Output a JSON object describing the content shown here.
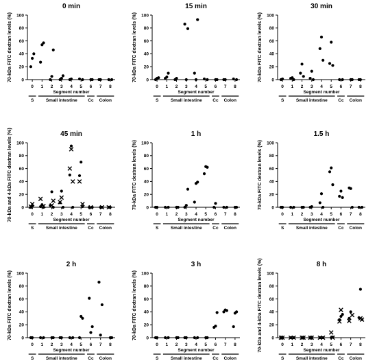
{
  "figure": {
    "y_label_70": "70-kDa FITC dextran levels (%)",
    "y_label_70_4": "70-kDa and 4-kDa FITC dextran levels (%)",
    "x_label": "Segment number",
    "groups": [
      "S",
      "Small intestine",
      "Cc",
      "Colon"
    ]
  },
  "chart_data": [
    {
      "type": "scatter",
      "title": "0 min",
      "ylabel": "70-kDa FITC dextran levels (%)",
      "xlabel": "Segment number",
      "x_categories": [
        "0",
        "1",
        "2",
        "3",
        "4",
        "5",
        "6",
        "7",
        "8"
      ],
      "ylim": [
        0,
        100
      ],
      "yticks": [
        0,
        20,
        40,
        60,
        80,
        100
      ],
      "series": [
        {
          "marker": "dot",
          "points": [
            [
              0,
              20
            ],
            [
              0,
              33
            ],
            [
              0,
              40
            ],
            [
              1,
              27
            ],
            [
              1,
              54
            ],
            [
              1,
              57
            ],
            [
              2,
              0
            ],
            [
              2,
              5
            ],
            [
              2,
              46
            ],
            [
              3,
              0
            ],
            [
              3,
              2
            ],
            [
              3,
              6
            ],
            [
              4,
              0
            ],
            [
              4,
              1
            ],
            [
              5,
              0
            ],
            [
              5,
              1
            ],
            [
              6,
              0
            ],
            [
              6,
              0
            ],
            [
              7,
              0
            ],
            [
              7,
              0
            ],
            [
              8,
              0
            ],
            [
              8,
              0
            ]
          ]
        }
      ]
    },
    {
      "type": "scatter",
      "title": "15 min",
      "ylabel": "70-kDa FITC dextran levels (%)",
      "xlabel": "Segment number",
      "x_categories": [
        "0",
        "1",
        "2",
        "3",
        "4",
        "5",
        "6",
        "7",
        "8"
      ],
      "ylim": [
        0,
        100
      ],
      "yticks": [
        0,
        20,
        40,
        60,
        80,
        100
      ],
      "series": [
        {
          "marker": "dot",
          "points": [
            [
              0,
              0
            ],
            [
              0,
              2
            ],
            [
              0,
              3
            ],
            [
              1,
              2
            ],
            [
              1,
              4
            ],
            [
              1,
              10
            ],
            [
              2,
              0
            ],
            [
              2,
              2
            ],
            [
              3,
              79
            ],
            [
              3,
              86
            ],
            [
              3,
              0
            ],
            [
              4,
              93
            ],
            [
              4,
              10
            ],
            [
              4,
              0
            ],
            [
              5,
              0
            ],
            [
              5,
              1
            ],
            [
              6,
              0
            ],
            [
              6,
              0
            ],
            [
              7,
              0
            ],
            [
              7,
              0
            ],
            [
              8,
              0
            ],
            [
              8,
              1
            ]
          ]
        }
      ]
    },
    {
      "type": "scatter",
      "title": "30 min",
      "ylabel": "70-kDa FITC dextran levels (%)",
      "xlabel": "Segment number",
      "x_categories": [
        "0",
        "1",
        "2",
        "3",
        "4",
        "5",
        "6",
        "7",
        "8"
      ],
      "ylim": [
        0,
        100
      ],
      "yticks": [
        0,
        20,
        40,
        60,
        80,
        100
      ],
      "series": [
        {
          "marker": "dot",
          "points": [
            [
              0,
              0
            ],
            [
              0,
              1
            ],
            [
              1,
              0
            ],
            [
              1,
              2
            ],
            [
              1,
              3
            ],
            [
              2,
              5
            ],
            [
              2,
              10
            ],
            [
              2,
              24
            ],
            [
              3,
              0
            ],
            [
              3,
              2
            ],
            [
              3,
              13
            ],
            [
              4,
              30
            ],
            [
              4,
              48
            ],
            [
              4,
              66
            ],
            [
              5,
              22
            ],
            [
              5,
              25
            ],
            [
              5,
              58
            ],
            [
              6,
              0
            ],
            [
              6,
              0
            ],
            [
              7,
              0
            ],
            [
              7,
              0
            ],
            [
              8,
              0
            ],
            [
              8,
              0
            ]
          ]
        }
      ]
    },
    {
      "type": "scatter",
      "title": "45 min",
      "ylabel": "70-kDa and 4-kDa FITC dextran levels (%)",
      "xlabel": "Segment number",
      "x_categories": [
        "0",
        "1",
        "2",
        "3",
        "4",
        "5",
        "6",
        "7",
        "8"
      ],
      "ylim": [
        0,
        100
      ],
      "yticks": [
        0,
        20,
        40,
        60,
        80,
        100
      ],
      "series": [
        {
          "marker": "dot",
          "points": [
            [
              0,
              0
            ],
            [
              0,
              2
            ],
            [
              1,
              0
            ],
            [
              1,
              1
            ],
            [
              1,
              4
            ],
            [
              2,
              0
            ],
            [
              2,
              3
            ],
            [
              2,
              24
            ],
            [
              3,
              0
            ],
            [
              3,
              7
            ],
            [
              3,
              25
            ],
            [
              4,
              0
            ],
            [
              4,
              50
            ],
            [
              4,
              95
            ],
            [
              5,
              1
            ],
            [
              5,
              49
            ],
            [
              5,
              70
            ],
            [
              6,
              0
            ],
            [
              6,
              0
            ],
            [
              7,
              0
            ],
            [
              7,
              0
            ],
            [
              8,
              0
            ],
            [
              8,
              0
            ]
          ]
        },
        {
          "marker": "x",
          "points": [
            [
              0,
              1
            ],
            [
              0,
              5
            ],
            [
              1,
              2
            ],
            [
              1,
              13
            ],
            [
              2,
              3
            ],
            [
              2,
              10
            ],
            [
              3,
              8
            ],
            [
              3,
              15
            ],
            [
              4,
              40
            ],
            [
              4,
              60
            ],
            [
              4,
              90
            ],
            [
              5,
              5
            ],
            [
              5,
              40
            ],
            [
              6,
              0
            ],
            [
              7,
              0
            ],
            [
              8,
              0
            ]
          ]
        }
      ]
    },
    {
      "type": "scatter",
      "title": "1 h",
      "ylabel": "70-kDa FITC dextran levels (%)",
      "xlabel": "Segment number",
      "x_categories": [
        "0",
        "1",
        "2",
        "3",
        "4",
        "5",
        "6",
        "7",
        "8"
      ],
      "ylim": [
        0,
        100
      ],
      "yticks": [
        0,
        20,
        40,
        60,
        80,
        100
      ],
      "series": [
        {
          "marker": "dot",
          "points": [
            [
              0,
              0
            ],
            [
              0,
              0
            ],
            [
              1,
              0
            ],
            [
              1,
              0
            ],
            [
              2,
              0
            ],
            [
              2,
              0
            ],
            [
              3,
              0
            ],
            [
              3,
              3
            ],
            [
              3,
              28
            ],
            [
              4,
              8
            ],
            [
              4,
              37
            ],
            [
              4,
              39
            ],
            [
              5,
              52
            ],
            [
              5,
              63
            ],
            [
              5,
              62
            ],
            [
              6,
              0
            ],
            [
              6,
              6
            ],
            [
              7,
              0
            ],
            [
              7,
              0
            ],
            [
              8,
              0
            ],
            [
              8,
              0
            ]
          ]
        }
      ]
    },
    {
      "type": "scatter",
      "title": "1.5 h",
      "ylabel": "70-kDa FITC dextran levels (%)",
      "xlabel": "Segment number",
      "x_categories": [
        "0",
        "1",
        "2",
        "3",
        "4",
        "5",
        "6",
        "7",
        "8"
      ],
      "ylim": [
        0,
        100
      ],
      "yticks": [
        0,
        20,
        40,
        60,
        80,
        100
      ],
      "series": [
        {
          "marker": "dot",
          "points": [
            [
              0,
              0
            ],
            [
              0,
              0
            ],
            [
              1,
              0
            ],
            [
              1,
              0
            ],
            [
              2,
              0
            ],
            [
              2,
              0
            ],
            [
              3,
              0
            ],
            [
              3,
              1
            ],
            [
              4,
              0
            ],
            [
              4,
              7
            ],
            [
              4,
              21
            ],
            [
              5,
              35
            ],
            [
              5,
              55
            ],
            [
              5,
              61
            ],
            [
              6,
              15
            ],
            [
              6,
              17
            ],
            [
              6,
              25
            ],
            [
              7,
              0
            ],
            [
              7,
              30
            ],
            [
              7,
              29
            ],
            [
              8,
              0
            ],
            [
              8,
              0
            ]
          ]
        }
      ]
    },
    {
      "type": "scatter",
      "title": "2 h",
      "ylabel": "70-kDa FITC dextran levels (%)",
      "xlabel": "Segment number",
      "x_categories": [
        "0",
        "1",
        "2",
        "3",
        "4",
        "5",
        "6",
        "7",
        "8"
      ],
      "ylim": [
        0,
        100
      ],
      "yticks": [
        0,
        20,
        40,
        60,
        80,
        100
      ],
      "series": [
        {
          "marker": "dot",
          "points": [
            [
              0,
              0
            ],
            [
              0,
              0
            ],
            [
              1,
              0
            ],
            [
              1,
              0
            ],
            [
              2,
              0
            ],
            [
              2,
              0
            ],
            [
              3,
              0
            ],
            [
              3,
              0
            ],
            [
              4,
              0
            ],
            [
              4,
              0
            ],
            [
              5,
              33
            ],
            [
              5,
              30
            ],
            [
              5,
              0
            ],
            [
              6,
              8
            ],
            [
              6,
              17
            ],
            [
              6,
              61
            ],
            [
              7,
              4
            ],
            [
              7,
              51
            ],
            [
              7,
              86
            ],
            [
              8,
              0
            ],
            [
              8,
              0
            ]
          ]
        }
      ]
    },
    {
      "type": "scatter",
      "title": "3 h",
      "ylabel": "70-kDa FITC dextran levels (%)",
      "xlabel": "Segment number",
      "x_categories": [
        "0",
        "1",
        "2",
        "3",
        "4",
        "5",
        "6",
        "7",
        "8"
      ],
      "ylim": [
        0,
        100
      ],
      "yticks": [
        0,
        20,
        40,
        60,
        80,
        100
      ],
      "series": [
        {
          "marker": "dot",
          "points": [
            [
              0,
              0
            ],
            [
              0,
              0
            ],
            [
              1,
              0
            ],
            [
              1,
              0
            ],
            [
              2,
              0
            ],
            [
              2,
              0
            ],
            [
              3,
              0
            ],
            [
              3,
              0
            ],
            [
              4,
              0
            ],
            [
              4,
              0
            ],
            [
              5,
              0
            ],
            [
              5,
              0
            ],
            [
              6,
              16
            ],
            [
              6,
              18
            ],
            [
              6,
              39
            ],
            [
              7,
              40
            ],
            [
              7,
              43
            ],
            [
              7,
              42
            ],
            [
              8,
              17
            ],
            [
              8,
              38
            ],
            [
              8,
              40
            ]
          ]
        }
      ]
    },
    {
      "type": "scatter",
      "title": "8 h",
      "ylabel": "70-kDa and 4-kDa FITC dextran levels (%)",
      "xlabel": "Segment number",
      "x_categories": [
        "0",
        "1",
        "2",
        "3",
        "4",
        "5",
        "6",
        "7",
        "8"
      ],
      "ylim": [
        0,
        100
      ],
      "yticks": [
        0,
        20,
        40,
        60,
        80,
        100
      ],
      "series": [
        {
          "marker": "dot",
          "points": [
            [
              0,
              0
            ],
            [
              0,
              0
            ],
            [
              1,
              0
            ],
            [
              1,
              0
            ],
            [
              2,
              0
            ],
            [
              2,
              0
            ],
            [
              3,
              0
            ],
            [
              3,
              0
            ],
            [
              4,
              0
            ],
            [
              4,
              0
            ],
            [
              5,
              0
            ],
            [
              5,
              1
            ],
            [
              6,
              28
            ],
            [
              6,
              33
            ],
            [
              6,
              36
            ],
            [
              7,
              30
            ],
            [
              7,
              40
            ],
            [
              8,
              28
            ],
            [
              8,
              31
            ],
            [
              8,
              75
            ]
          ]
        },
        {
          "marker": "x",
          "points": [
            [
              0,
              0
            ],
            [
              0,
              0
            ],
            [
              1,
              0
            ],
            [
              1,
              0
            ],
            [
              2,
              0
            ],
            [
              2,
              0
            ],
            [
              3,
              0
            ],
            [
              3,
              0
            ],
            [
              4,
              0
            ],
            [
              4,
              0
            ],
            [
              5,
              8
            ],
            [
              5,
              0
            ],
            [
              6,
              25
            ],
            [
              6,
              43
            ],
            [
              7,
              35
            ],
            [
              7,
              26
            ],
            [
              8,
              30
            ],
            [
              8,
              28
            ]
          ]
        }
      ]
    }
  ]
}
